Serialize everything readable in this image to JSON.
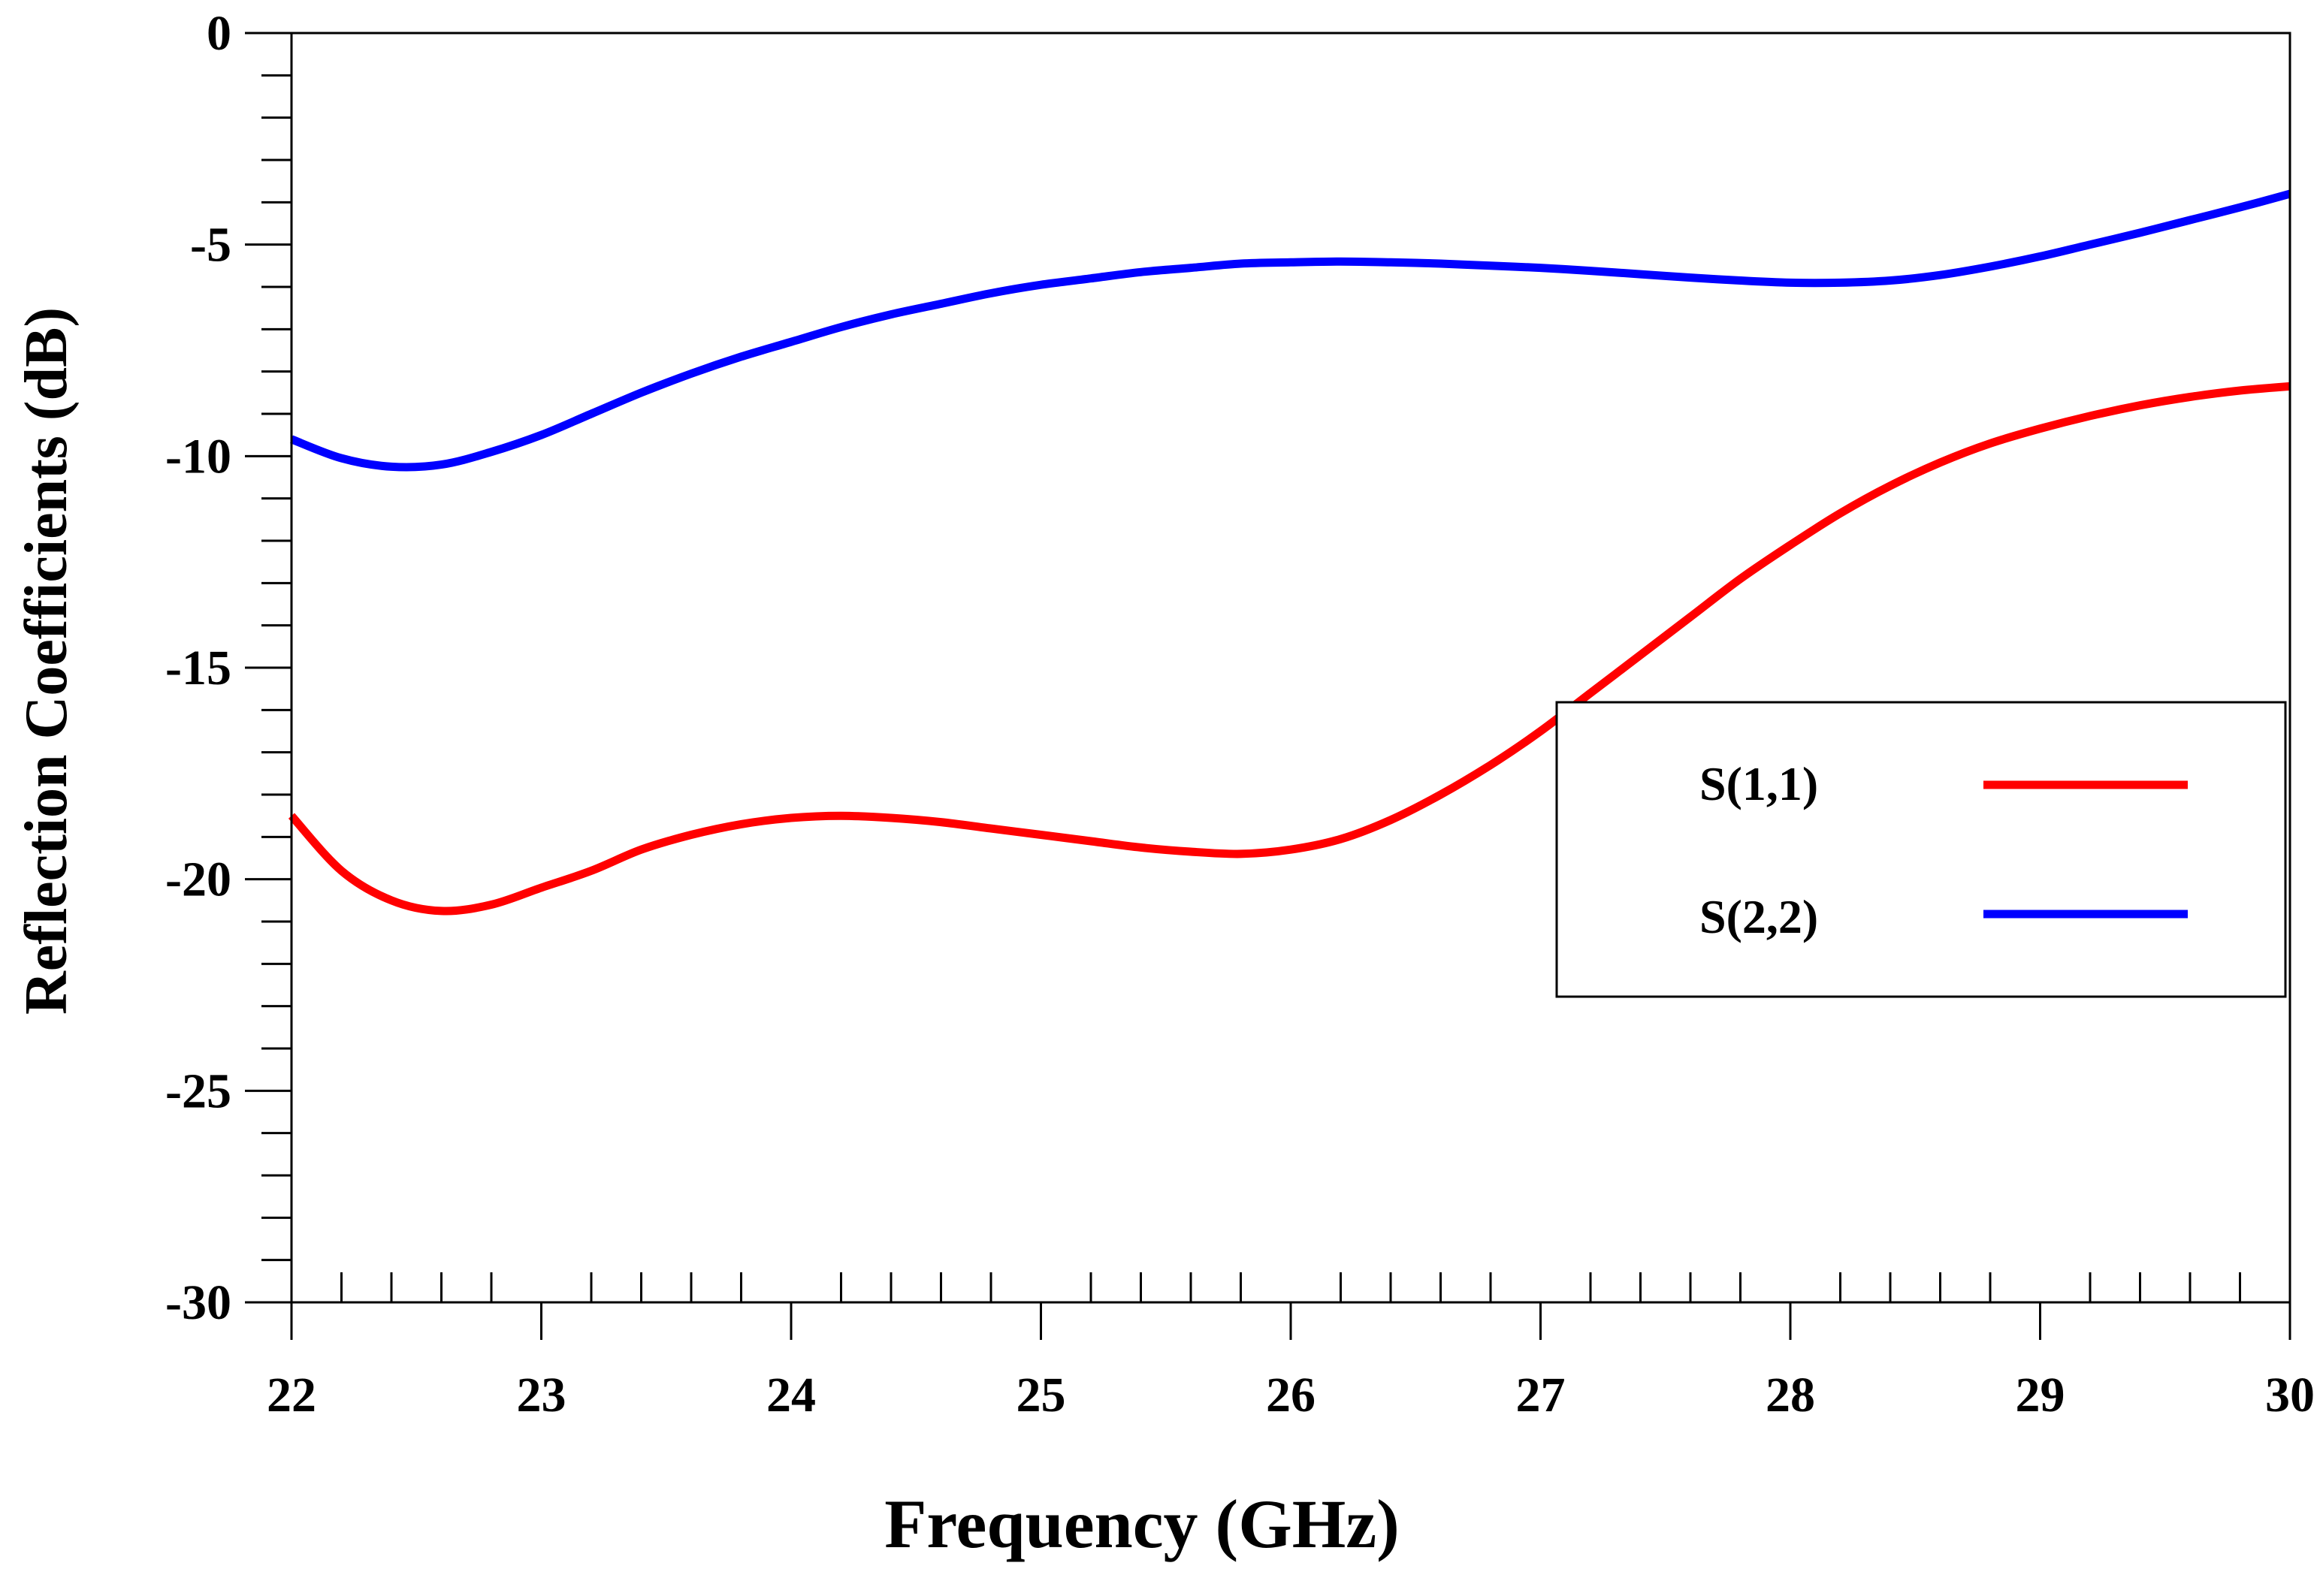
{
  "chart_data": {
    "type": "line",
    "title": "",
    "xlabel": "Frequency (GHz)",
    "ylabel": "Reflection Coefficients (dB)",
    "xlim": [
      22,
      30
    ],
    "ylim": [
      -30,
      0
    ],
    "x_ticks": [
      22,
      23,
      24,
      25,
      26,
      27,
      28,
      29,
      30
    ],
    "x_tick_labels": [
      "22",
      "23",
      "24",
      "25",
      "26",
      "27",
      "28",
      "29",
      "30"
    ],
    "x_minor_step": 0.2,
    "y_ticks": [
      0,
      -5,
      -10,
      -15,
      -20,
      -25,
      -30
    ],
    "y_tick_labels": [
      "0",
      "-5",
      "-10",
      "-15",
      "-20",
      "-25",
      "-30"
    ],
    "y_minor_step": 1,
    "grid": false,
    "legend_position": "right",
    "series": [
      {
        "name": "S(1,1)",
        "color": "#ff0000",
        "x": [
          22.0,
          22.2,
          22.4,
          22.6,
          22.8,
          23.0,
          23.2,
          23.4,
          23.6,
          23.8,
          24.0,
          24.2,
          24.4,
          24.6,
          24.8,
          25.0,
          25.2,
          25.4,
          25.6,
          25.8,
          26.0,
          26.2,
          26.4,
          26.6,
          26.8,
          27.0,
          27.2,
          27.4,
          27.6,
          27.8,
          28.0,
          28.2,
          28.4,
          28.6,
          28.8,
          29.0,
          29.2,
          29.4,
          29.6,
          29.8,
          30.0
        ],
        "values": [
          -18.5,
          -19.8,
          -20.5,
          -20.75,
          -20.6,
          -20.2,
          -19.8,
          -19.3,
          -18.95,
          -18.7,
          -18.55,
          -18.5,
          -18.55,
          -18.65,
          -18.8,
          -18.95,
          -19.1,
          -19.25,
          -19.35,
          -19.4,
          -19.3,
          -19.05,
          -18.6,
          -18.0,
          -17.3,
          -16.5,
          -15.6,
          -14.7,
          -13.8,
          -12.9,
          -12.1,
          -11.35,
          -10.7,
          -10.15,
          -9.7,
          -9.35,
          -9.05,
          -8.8,
          -8.6,
          -8.45,
          -8.35
        ]
      },
      {
        "name": "S(2,2)",
        "color": "#0000ff",
        "x": [
          22.0,
          22.2,
          22.4,
          22.6,
          22.8,
          23.0,
          23.2,
          23.4,
          23.6,
          23.8,
          24.0,
          24.2,
          24.4,
          24.6,
          24.8,
          25.0,
          25.2,
          25.4,
          25.6,
          25.8,
          26.0,
          26.2,
          26.4,
          26.6,
          26.8,
          27.0,
          27.2,
          27.4,
          27.6,
          27.8,
          28.0,
          28.2,
          28.4,
          28.6,
          28.8,
          29.0,
          29.2,
          29.4,
          29.6,
          29.8,
          30.0
        ],
        "values": [
          -9.6,
          -10.05,
          -10.25,
          -10.2,
          -9.9,
          -9.5,
          -9.0,
          -8.5,
          -8.05,
          -7.65,
          -7.3,
          -6.95,
          -6.65,
          -6.4,
          -6.15,
          -5.95,
          -5.8,
          -5.65,
          -5.55,
          -5.45,
          -5.42,
          -5.4,
          -5.42,
          -5.45,
          -5.5,
          -5.55,
          -5.62,
          -5.7,
          -5.78,
          -5.85,
          -5.9,
          -5.9,
          -5.85,
          -5.72,
          -5.52,
          -5.28,
          -5.0,
          -4.72,
          -4.42,
          -4.12,
          -3.8
        ]
      }
    ]
  }
}
